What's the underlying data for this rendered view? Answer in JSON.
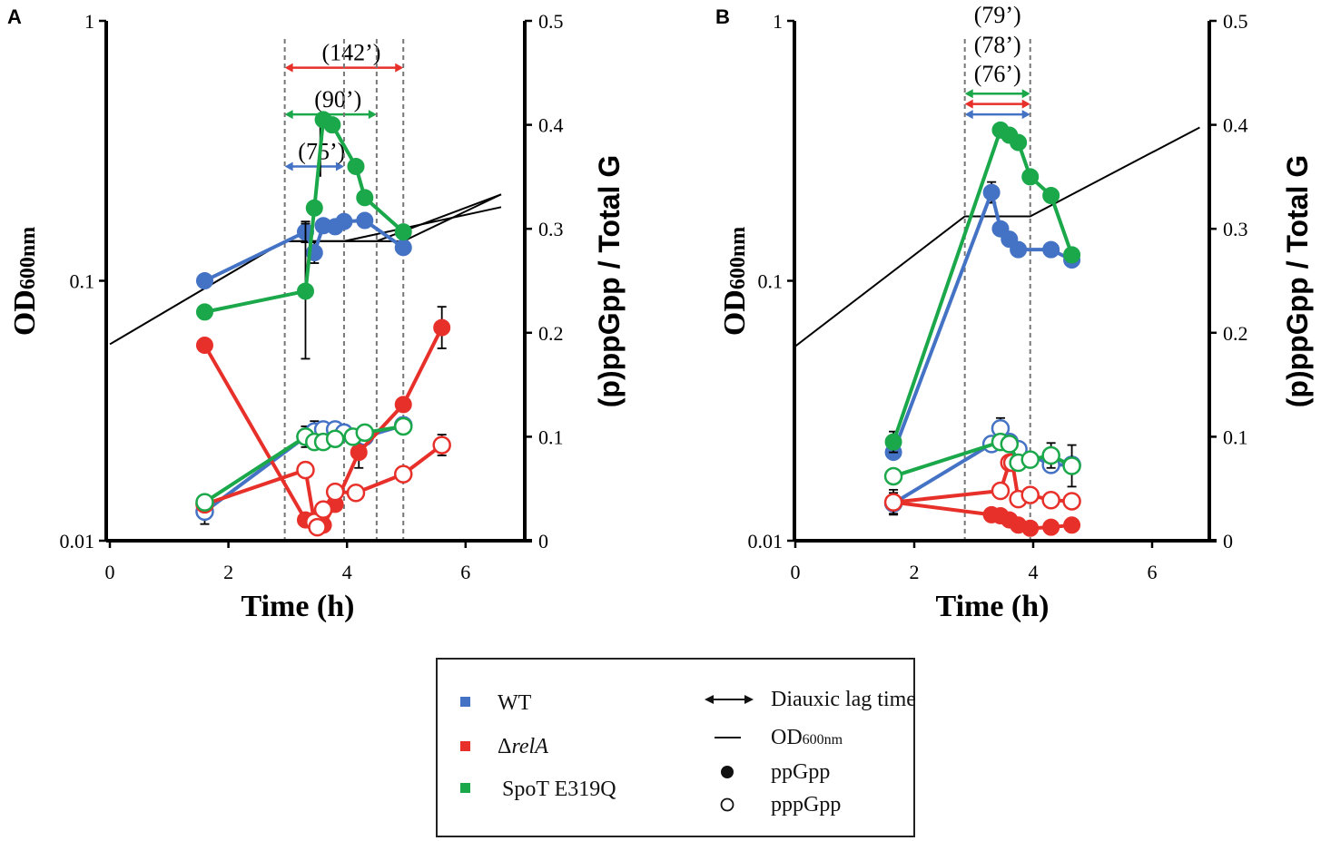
{
  "figure": {
    "legend": {
      "series": [
        {
          "key": "wt",
          "label": "WT",
          "color": "#4472c4"
        },
        {
          "key": "rela",
          "label_prefix": "Δ",
          "label_italic": "relA",
          "color": "#e8302a"
        },
        {
          "key": "spot",
          "label": "SpoT E319Q",
          "color": "#1aa84a"
        }
      ],
      "markers": {
        "lag": "Diauxic lag time",
        "od_main": "OD",
        "od_sub": "600nm",
        "pp": "ppGpp",
        "ppp": "pppGpp"
      }
    }
  },
  "chart_data": [
    {
      "type": "line",
      "panel_label": "A",
      "xlabel": "Time (h)",
      "ylabel_left": {
        "main": "OD",
        "sub": "600nm"
      },
      "ylabel_right": "(p)ppGpp / Total G",
      "xlim": [
        0,
        7
      ],
      "xticks": [
        0,
        2,
        4,
        6
      ],
      "ylim_left": [
        0.01,
        1
      ],
      "yscale_left": "log",
      "yticks_left": [
        0.01,
        0.1,
        1
      ],
      "yticklabels_left": [
        "0.01",
        "0.1",
        "1"
      ],
      "ylim_right": [
        0,
        0.5
      ],
      "yticks_right": [
        0,
        0.1,
        0.2,
        0.3,
        0.4,
        0.5
      ],
      "yticklabels_right": [
        "0",
        "0.1",
        "0.2",
        "0.3",
        "0.4",
        "0.5"
      ],
      "vlines": [
        2.95,
        3.95,
        4.5,
        4.95
      ],
      "lag_arrows": [
        {
          "label": "(142’)",
          "x0": 2.95,
          "x1": 4.95,
          "y": 0.455,
          "color": "#e8302a"
        },
        {
          "label": "(90’)",
          "x0": 2.95,
          "x1": 4.5,
          "y": 0.41,
          "color": "#1aa84a"
        },
        {
          "label": "(75’)",
          "x0": 2.95,
          "x1": 3.95,
          "y": 0.36,
          "color": "#4472c4"
        }
      ],
      "od_lines": [
        {
          "x": [
            0,
            2.95,
            4.95,
            6.6
          ],
          "y": [
            0.057,
            0.142,
            0.142,
            0.215
          ]
        },
        {
          "x": [
            2.95,
            4.5,
            6.6
          ],
          "y": [
            0.142,
            0.142,
            0.215
          ]
        },
        {
          "x": [
            2.95,
            3.95,
            6.6
          ],
          "y": [
            0.142,
            0.142,
            0.192
          ]
        }
      ],
      "spike": {
        "x": 3.55,
        "y": [
          0.35,
          0.41
        ]
      },
      "series": [
        {
          "name": "WT",
          "color": "#4472c4",
          "form": "ppGpp",
          "x": [
            1.6,
            3.3,
            3.45,
            3.6,
            3.8,
            3.95,
            4.3,
            4.95
          ],
          "y": [
            0.25,
            0.297,
            0.277,
            0.303,
            0.302,
            0.307,
            0.308,
            0.282
          ],
          "err": [
            0.005,
            0.01,
            0.01,
            0.005,
            0.005,
            0.005,
            0.005,
            0.005
          ]
        },
        {
          "name": "WT",
          "color": "#4472c4",
          "form": "pppGpp",
          "x": [
            1.6,
            3.3,
            3.45,
            3.6,
            3.8,
            3.95,
            4.3,
            4.95
          ],
          "y": [
            0.028,
            0.1,
            0.105,
            0.107,
            0.107,
            0.104,
            0.1,
            0.111
          ],
          "err": [
            0.012,
            0.01,
            0.01,
            0.005,
            0.005,
            0.005,
            0.005,
            0.005
          ]
        },
        {
          "name": "ΔrelA",
          "color": "#e8302a",
          "form": "ppGpp",
          "x": [
            1.6,
            3.3,
            3.45,
            3.6,
            3.8,
            4.2,
            4.95,
            5.6
          ],
          "y": [
            0.188,
            0.02,
            0.02,
            0.015,
            0.035,
            0.085,
            0.131,
            0.205
          ],
          "err": [
            0.005,
            0.005,
            0.005,
            0.005,
            0.005,
            0.015,
            0.005,
            0.02
          ]
        },
        {
          "name": "ΔrelA",
          "color": "#e8302a",
          "form": "pppGpp",
          "x": [
            1.6,
            3.3,
            3.45,
            3.5,
            3.6,
            3.8,
            4.15,
            4.95,
            5.6
          ],
          "y": [
            0.035,
            0.068,
            0.018,
            0.013,
            0.03,
            0.047,
            0.046,
            0.064,
            0.092
          ],
          "err": [
            0.005,
            0.005,
            0.005,
            0.005,
            0.005,
            0.005,
            0.005,
            0.005,
            0.01
          ]
        },
        {
          "name": "SpoT E319Q",
          "color": "#1aa84a",
          "form": "ppGpp",
          "x": [
            1.6,
            3.3,
            3.45,
            3.6,
            3.75,
            4.15,
            4.3,
            4.95
          ],
          "y": [
            0.22,
            0.24,
            0.32,
            0.405,
            0.4,
            0.36,
            0.33,
            0.297
          ],
          "err": [
            0.005,
            0.065,
            0.005,
            0.005,
            0.005,
            0.005,
            0.005,
            0.005
          ]
        },
        {
          "name": "SpoT E319Q",
          "color": "#1aa84a",
          "form": "pppGpp",
          "x": [
            1.6,
            3.3,
            3.45,
            3.6,
            3.8,
            4.1,
            4.3,
            4.95
          ],
          "y": [
            0.037,
            0.1,
            0.095,
            0.095,
            0.098,
            0.1,
            0.104,
            0.11
          ],
          "err": [
            0.005,
            0.005,
            0.005,
            0.005,
            0.005,
            0.005,
            0.005,
            0.005
          ]
        }
      ]
    },
    {
      "type": "line",
      "panel_label": "B",
      "xlabel": "Time (h)",
      "ylabel_left": {
        "main": "OD",
        "sub": "600nm"
      },
      "ylabel_right": "(p)ppGpp / Total G",
      "xlim": [
        0,
        7
      ],
      "xticks": [
        0,
        2,
        4,
        6
      ],
      "ylim_left": [
        0.01,
        1
      ],
      "yscale_left": "log",
      "yticks_left": [
        0.01,
        0.1,
        1
      ],
      "yticklabels_left": [
        "0.01",
        "0.1",
        "1"
      ],
      "ylim_right": [
        0,
        0.5
      ],
      "yticks_right": [
        0,
        0.1,
        0.2,
        0.3,
        0.4,
        0.5
      ],
      "yticklabels_right": [
        "0",
        "0.1",
        "0.2",
        "0.3",
        "0.4",
        "0.5"
      ],
      "vlines": [
        2.85,
        3.95
      ],
      "lag_arrows": [
        {
          "label": "(79’)",
          "x0": 2.85,
          "x1": 3.95,
          "y": 0.43,
          "color": "#1aa84a"
        },
        {
          "label": "(78’)",
          "x0": 2.85,
          "x1": 3.95,
          "y": 0.42,
          "color": "#e8302a"
        },
        {
          "label": "(76’)",
          "x0": 2.85,
          "x1": 3.95,
          "y": 0.41,
          "color": "#4472c4"
        }
      ],
      "od_lines": [
        {
          "x": [
            0,
            2.85,
            3.95,
            6.8
          ],
          "y": [
            0.056,
            0.177,
            0.177,
            0.389
          ]
        }
      ],
      "series": [
        {
          "name": "WT",
          "color": "#4472c4",
          "form": "ppGpp",
          "x": [
            1.65,
            3.3,
            3.45,
            3.6,
            3.75,
            4.3,
            4.65
          ],
          "y": [
            0.085,
            0.335,
            0.3,
            0.29,
            0.28,
            0.28,
            0.27
          ],
          "err": [
            0.005,
            0.01,
            0.005,
            0.005,
            0.005,
            0.005,
            0.005
          ]
        },
        {
          "name": "WT",
          "color": "#4472c4",
          "form": "pppGpp",
          "x": [
            1.65,
            3.3,
            3.45,
            3.6,
            3.75,
            4.3,
            4.65
          ],
          "y": [
            0.036,
            0.093,
            0.108,
            0.095,
            0.088,
            0.073,
            0.073
          ],
          "err": [
            0.01,
            0.005,
            0.01,
            0.005,
            0.005,
            0.005,
            0.005
          ]
        },
        {
          "name": "ΔrelA",
          "color": "#e8302a",
          "form": "ppGpp",
          "x": [
            1.65,
            3.3,
            3.45,
            3.6,
            3.75,
            3.95,
            4.3,
            4.65
          ],
          "y": [
            0.037,
            0.025,
            0.024,
            0.02,
            0.015,
            0.012,
            0.013,
            0.015
          ],
          "err": [
            0.012,
            0.005,
            0.005,
            0.005,
            0.005,
            0.005,
            0.005,
            0.005
          ]
        },
        {
          "name": "ΔrelA",
          "color": "#e8302a",
          "form": "pppGpp",
          "x": [
            1.65,
            3.45,
            3.6,
            3.65,
            3.75,
            3.95,
            4.3,
            4.65
          ],
          "y": [
            0.037,
            0.048,
            0.075,
            0.075,
            0.04,
            0.044,
            0.039,
            0.038
          ],
          "err": [
            0.005,
            0.005,
            0.005,
            0.005,
            0.005,
            0.005,
            0.005,
            0.005
          ]
        },
        {
          "name": "SpoT E319Q",
          "color": "#1aa84a",
          "form": "ppGpp",
          "x": [
            1.65,
            3.45,
            3.6,
            3.75,
            3.95,
            4.3,
            4.65
          ],
          "y": [
            0.095,
            0.395,
            0.39,
            0.383,
            0.35,
            0.332,
            0.275
          ],
          "err": [
            0.01,
            0.005,
            0.005,
            0.005,
            0.005,
            0.005,
            0.005
          ]
        },
        {
          "name": "SpoT E319Q",
          "color": "#1aa84a",
          "form": "pppGpp",
          "x": [
            1.65,
            3.45,
            3.6,
            3.75,
            3.95,
            4.3,
            4.65
          ],
          "y": [
            0.062,
            0.095,
            0.093,
            0.075,
            0.078,
            0.082,
            0.072
          ],
          "err": [
            0.005,
            0.005,
            0.005,
            0.005,
            0.005,
            0.012,
            0.02
          ]
        }
      ]
    }
  ]
}
